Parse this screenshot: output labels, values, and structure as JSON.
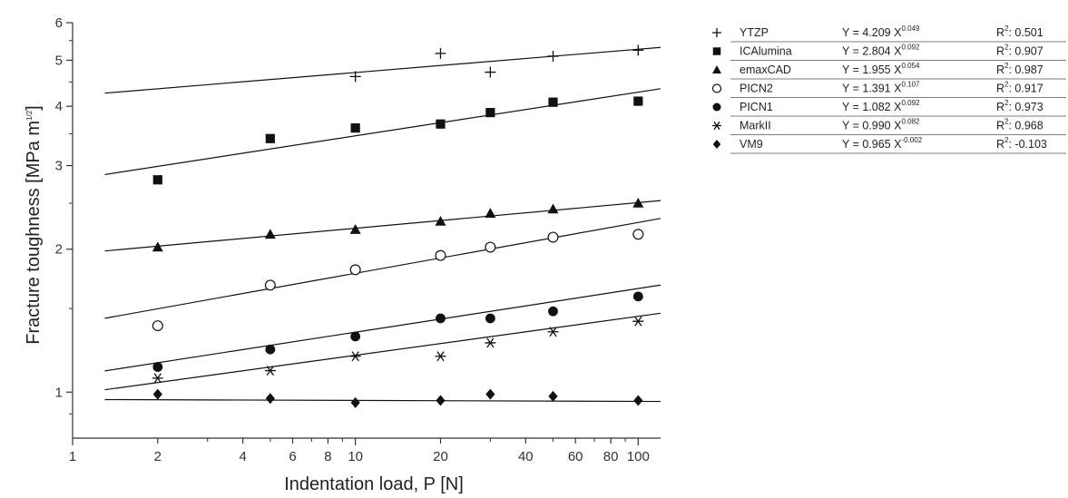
{
  "chart_data": {
    "type": "scatter",
    "xscale": "log",
    "yscale": "log",
    "xlabel": "Indentation load, P [N]",
    "ylabel_main": "Fracture toughness [MPa m",
    "ylabel_sup": "1/2",
    "ylabel_end": "]",
    "xlim": [
      1,
      120
    ],
    "ylim": [
      0.8,
      6
    ],
    "x_ticks": [
      1,
      2,
      4,
      6,
      8,
      10,
      20,
      40,
      60,
      80,
      100
    ],
    "x_tick_labels": [
      "1",
      "2",
      "4",
      "6",
      "8",
      "10",
      "20",
      "40",
      "60",
      "80",
      "100"
    ],
    "y_ticks": [
      1,
      2,
      3,
      4,
      5,
      6
    ],
    "y_tick_labels": [
      "1",
      "2",
      "3",
      "4",
      "5",
      "6"
    ],
    "grid": false,
    "legend_position": "right",
    "x": [
      2,
      5,
      10,
      20,
      30,
      50,
      100
    ],
    "series": [
      {
        "name": "YTZP",
        "marker": "plus",
        "values": [
          null,
          null,
          4.62,
          5.17,
          4.72,
          5.1,
          5.25
        ],
        "fit": {
          "a": 4.209,
          "b": 0.049
        },
        "eq_main": "Y = 4.209 X",
        "eq_exp": "0.049",
        "r2_label": "R",
        "r2_value": ": 0.501"
      },
      {
        "name": "ICAlumina",
        "marker": "square",
        "values": [
          2.8,
          3.42,
          3.6,
          3.67,
          3.88,
          4.08,
          4.1
        ],
        "fit": {
          "a": 2.804,
          "b": 0.092
        },
        "eq_main": "Y = 2.804 X",
        "eq_exp": "0.092",
        "r2_label": "R",
        "r2_value": ": 0.907"
      },
      {
        "name": "emaxCAD",
        "marker": "triangle",
        "values": [
          2.02,
          2.15,
          2.2,
          2.29,
          2.38,
          2.43,
          2.5
        ],
        "fit": {
          "a": 1.955,
          "b": 0.054
        },
        "eq_main": "Y = 1.955 X",
        "eq_exp": "0.054",
        "r2_label": "R",
        "r2_value": ": 0.987"
      },
      {
        "name": "PICN2",
        "marker": "circle-open",
        "values": [
          1.38,
          1.68,
          1.81,
          1.94,
          2.02,
          2.12,
          2.15
        ],
        "fit": {
          "a": 1.391,
          "b": 0.107
        },
        "eq_main": "Y = 1.391 X",
        "eq_exp": "0.107",
        "r2_label": "R",
        "r2_value": ": 0.917"
      },
      {
        "name": "PICN1",
        "marker": "circle",
        "values": [
          1.13,
          1.23,
          1.31,
          1.43,
          1.43,
          1.48,
          1.59
        ],
        "fit": {
          "a": 1.082,
          "b": 0.092
        },
        "eq_main": "Y = 1.082 X",
        "eq_exp": "0.092",
        "r2_label": "R",
        "r2_value": ": 0.973"
      },
      {
        "name": "MarkII",
        "marker": "asterisk",
        "values": [
          1.07,
          1.11,
          1.19,
          1.19,
          1.27,
          1.34,
          1.41
        ],
        "fit": {
          "a": 0.99,
          "b": 0.082
        },
        "eq_main": "Y = 0.990 X",
        "eq_exp": "0.082",
        "r2_label": "R",
        "r2_value": ": 0.968"
      },
      {
        "name": "VM9",
        "marker": "diamond",
        "values": [
          0.99,
          0.97,
          0.95,
          0.96,
          0.99,
          0.98,
          0.96
        ],
        "fit": {
          "a": 0.965,
          "b": -0.002
        },
        "eq_main": "Y = 0.965 X",
        "eq_exp": "-0.002",
        "r2_label": "R",
        "r2_value": ": -0.103"
      }
    ]
  },
  "colors": {
    "ink": "#111111",
    "axis": "#333333",
    "legend_rule": "#555555"
  }
}
